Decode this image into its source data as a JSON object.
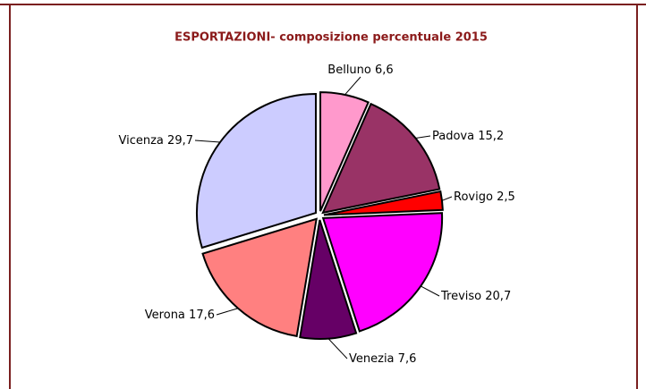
{
  "chart_data": {
    "type": "pie",
    "title": "ESPORTAZIONI- composizione percentuale 2015",
    "categories": [
      "Belluno",
      "Padova",
      "Rovigo",
      "Treviso",
      "Venezia",
      "Verona",
      "Vicenza"
    ],
    "values": [
      6.6,
      15.2,
      2.5,
      20.7,
      7.6,
      17.6,
      29.7
    ],
    "value_labels": [
      "6,6",
      "15,2",
      "2,5",
      "20,7",
      "7,6",
      "17,6",
      "29,7"
    ],
    "colors": [
      "#ff99cc",
      "#993366",
      "#ff0000",
      "#ff00ff",
      "#660066",
      "#ff8080",
      "#ccccff"
    ]
  }
}
